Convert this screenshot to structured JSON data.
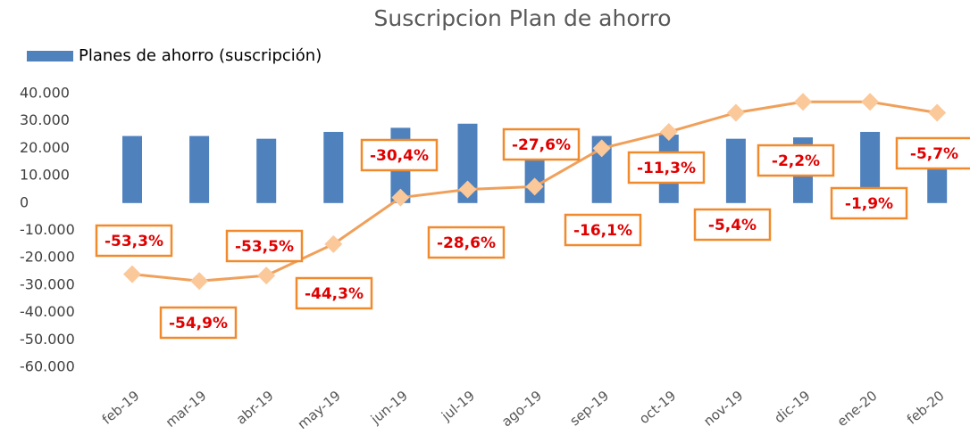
{
  "chart_data": {
    "type": "bar",
    "title": "Suscripcion Plan de ahorro",
    "categories": [
      "feb-19",
      "mar-19",
      "abr-19",
      "may-19",
      "jun-19",
      "jul-19",
      "ago-19",
      "sep-19",
      "oct-19",
      "nov-19",
      "dic-19",
      "ene-20",
      "feb-20"
    ],
    "series": [
      {
        "name": "Planes de ahorro (suscripción)",
        "type": "bar",
        "color": "#4f81bd",
        "values": [
          24500,
          24500,
          23500,
          26000,
          27500,
          29000,
          25000,
          24500,
          25000,
          23500,
          24000,
          26000,
          24000
        ]
      },
      {
        "type": "line",
        "color": "#f0a05a",
        "marker_color": "#fbc89a",
        "values": [
          -26000,
          -28500,
          -26500,
          -15000,
          2000,
          5000,
          6000,
          20000,
          26000,
          33000,
          37000,
          37000,
          33000
        ],
        "labels": [
          "-53,3%",
          "-54,9%",
          "-53,5%",
          "-44,3%",
          "-30,4%",
          "-28,6%",
          "-27,6%",
          "-16,1%",
          "-11,3%",
          "-5,4%",
          "-2,2%",
          "-1,9%",
          "-5,7%"
        ]
      }
    ],
    "ylim": [
      -60000,
      40000
    ],
    "yticks": [
      {
        "value": -60000,
        "label": "-60.000"
      },
      {
        "value": -50000,
        "label": "-50.000"
      },
      {
        "value": -40000,
        "label": "-40.000"
      },
      {
        "value": -30000,
        "label": "-30.000"
      },
      {
        "value": -20000,
        "label": "-20.000"
      },
      {
        "value": -10000,
        "label": "-10.000"
      },
      0,
      {
        "value": 10000,
        "label": "10.000"
      },
      {
        "value": 20000,
        "label": "20.000"
      },
      {
        "value": 30000,
        "label": "30.000"
      },
      {
        "value": 40000,
        "label": "40.000"
      }
    ],
    "legend": "top-left",
    "grid": false
  }
}
